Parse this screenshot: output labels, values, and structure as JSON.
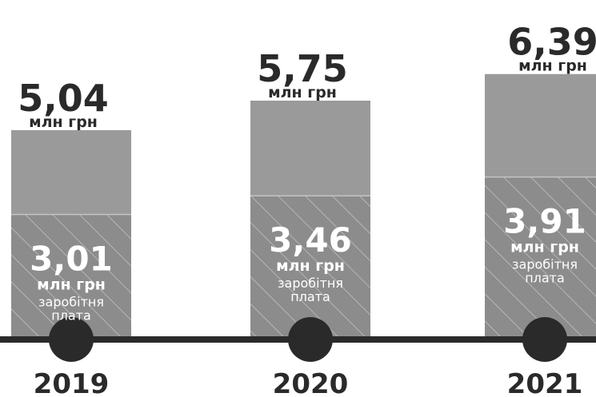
{
  "colors": {
    "bar_total": "#9a9a9a",
    "bar_salary": "#8c8c8c",
    "hatch": "#c4c4c4",
    "axis": "#2a2a2a",
    "marker": "#2a2a2a",
    "text_dark": "#2a2a2a",
    "text_light": "#ffffff"
  },
  "chart_data": {
    "type": "bar",
    "categories": [
      "2019",
      "2020",
      "2021"
    ],
    "series": [
      {
        "values": [
          5.04,
          5.75,
          6.39
        ],
        "value_labels": [
          "5,04",
          "5,75",
          "6,39"
        ],
        "unit_label": "млн грн"
      },
      {
        "values": [
          3.01,
          3.46,
          3.91
        ],
        "value_labels": [
          "3,01",
          "3,46",
          "3,91"
        ],
        "unit_label": "млн грн",
        "label_lines": [
          "заробітня",
          "плата"
        ]
      }
    ]
  }
}
